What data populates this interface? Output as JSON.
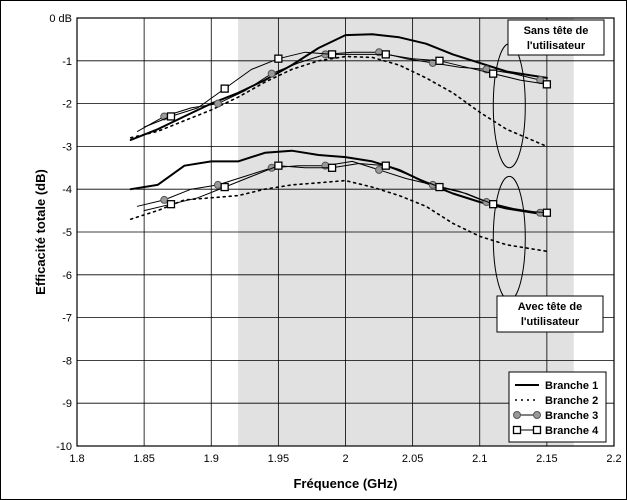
{
  "chart_data": {
    "type": "line",
    "title": "",
    "xlabel": "Fréquence (GHz)",
    "ylabel": "Efficacité totale (dB)",
    "xlim": [
      1.8,
      2.2
    ],
    "ylim": [
      -10,
      0
    ],
    "x_ticks": [
      "1.8",
      "1.85",
      "1.9",
      "1.95",
      "2",
      "2.05",
      "2.1",
      "2.15",
      "2.2"
    ],
    "y_ticks": [
      "0 dB",
      "-1",
      "-2",
      "-3",
      "-4",
      "-5",
      "-6",
      "-7",
      "-8",
      "-9",
      "-10"
    ],
    "grid": true,
    "shaded_band": {
      "x": [
        1.92,
        2.17
      ],
      "color": "#e1e1e1"
    },
    "legend": {
      "position": "bottom-right",
      "entries": [
        "Branche 1",
        "Branche 2",
        "Branche 3",
        "Branche 4"
      ]
    },
    "annotations": [
      {
        "lines": [
          "Sans tête de",
          "l'utilisateur"
        ],
        "target": "upper curves"
      },
      {
        "lines": [
          "Avec tête de",
          "l'utilisateur"
        ],
        "target": "lower curves"
      }
    ],
    "series": [
      {
        "name": "Branche 1",
        "group": "sans",
        "style": "solid-thick",
        "marker": "none",
        "x": [
          1.84,
          1.86,
          1.88,
          1.9,
          1.92,
          1.94,
          1.96,
          1.98,
          2.0,
          2.02,
          2.04,
          2.06,
          2.08,
          2.1,
          2.12,
          2.15
        ],
        "y": [
          -2.85,
          -2.6,
          -2.3,
          -2.0,
          -1.75,
          -1.45,
          -1.1,
          -0.7,
          -0.4,
          -0.38,
          -0.45,
          -0.6,
          -0.85,
          -1.05,
          -1.25,
          -1.4
        ]
      },
      {
        "name": "Branche 2",
        "group": "sans",
        "style": "dotted",
        "marker": "none",
        "x": [
          1.84,
          1.86,
          1.88,
          1.9,
          1.92,
          1.94,
          1.96,
          1.98,
          2.0,
          2.02,
          2.04,
          2.06,
          2.08,
          2.1,
          2.12,
          2.15
        ],
        "y": [
          -2.8,
          -2.65,
          -2.4,
          -2.15,
          -1.85,
          -1.5,
          -1.2,
          -1.0,
          -0.9,
          -0.92,
          -1.1,
          -1.4,
          -1.75,
          -2.2,
          -2.6,
          -3.0
        ]
      },
      {
        "name": "Branche 3",
        "group": "sans",
        "style": "solid",
        "marker": "circle",
        "x": [
          1.845,
          1.865,
          1.885,
          1.905,
          1.925,
          1.945,
          1.965,
          1.985,
          2.005,
          2.025,
          2.045,
          2.065,
          2.085,
          2.105,
          2.125,
          2.145
        ],
        "y": [
          -2.65,
          -2.3,
          -2.1,
          -2.0,
          -1.7,
          -1.3,
          -1.05,
          -0.85,
          -0.8,
          -0.8,
          -0.95,
          -1.05,
          -1.15,
          -1.2,
          -1.3,
          -1.45
        ]
      },
      {
        "name": "Branche 4",
        "group": "sans",
        "style": "solid",
        "marker": "square",
        "x": [
          1.85,
          1.87,
          1.89,
          1.91,
          1.93,
          1.95,
          1.97,
          1.99,
          2.01,
          2.03,
          2.05,
          2.07,
          2.09,
          2.11,
          2.13,
          2.15
        ],
        "y": [
          -2.55,
          -2.3,
          -2.1,
          -1.65,
          -1.2,
          -0.95,
          -0.8,
          -0.85,
          -0.85,
          -0.85,
          -0.95,
          -1.0,
          -1.15,
          -1.3,
          -1.45,
          -1.55
        ]
      },
      {
        "name": "Branche 1",
        "group": "avec",
        "style": "solid-thick",
        "marker": "none",
        "x": [
          1.84,
          1.86,
          1.88,
          1.9,
          1.92,
          1.94,
          1.96,
          1.98,
          2.0,
          2.02,
          2.04,
          2.06,
          2.08,
          2.1,
          2.12,
          2.15
        ],
        "y": [
          -4.0,
          -3.9,
          -3.45,
          -3.35,
          -3.35,
          -3.15,
          -3.1,
          -3.2,
          -3.25,
          -3.35,
          -3.55,
          -3.85,
          -4.1,
          -4.3,
          -4.45,
          -4.6
        ]
      },
      {
        "name": "Branche 2",
        "group": "avec",
        "style": "dotted",
        "marker": "none",
        "x": [
          1.84,
          1.86,
          1.88,
          1.9,
          1.92,
          1.94,
          1.96,
          1.98,
          2.0,
          2.02,
          2.04,
          2.06,
          2.08,
          2.1,
          2.12,
          2.15
        ],
        "y": [
          -4.7,
          -4.5,
          -4.25,
          -4.2,
          -4.15,
          -4.0,
          -3.9,
          -3.85,
          -3.8,
          -3.95,
          -4.15,
          -4.4,
          -4.8,
          -5.1,
          -5.3,
          -5.45
        ]
      },
      {
        "name": "Branche 3",
        "group": "avec",
        "style": "solid",
        "marker": "circle",
        "x": [
          1.845,
          1.865,
          1.885,
          1.905,
          1.925,
          1.945,
          1.965,
          1.985,
          2.005,
          2.025,
          2.045,
          2.065,
          2.085,
          2.105,
          2.125,
          2.145
        ],
        "y": [
          -4.4,
          -4.25,
          -4.0,
          -3.9,
          -3.7,
          -3.5,
          -3.45,
          -3.45,
          -3.35,
          -3.55,
          -3.75,
          -3.9,
          -4.05,
          -4.3,
          -4.45,
          -4.55
        ]
      },
      {
        "name": "Branche 4",
        "group": "avec",
        "style": "solid",
        "marker": "square",
        "x": [
          1.85,
          1.87,
          1.89,
          1.91,
          1.93,
          1.95,
          1.97,
          1.99,
          2.01,
          2.03,
          2.05,
          2.07,
          2.09,
          2.11,
          2.13,
          2.15
        ],
        "y": [
          -4.5,
          -4.35,
          -4.2,
          -3.95,
          -3.7,
          -3.45,
          -3.5,
          -3.5,
          -3.4,
          -3.45,
          -3.7,
          -3.95,
          -4.1,
          -4.35,
          -4.5,
          -4.55
        ]
      }
    ]
  }
}
